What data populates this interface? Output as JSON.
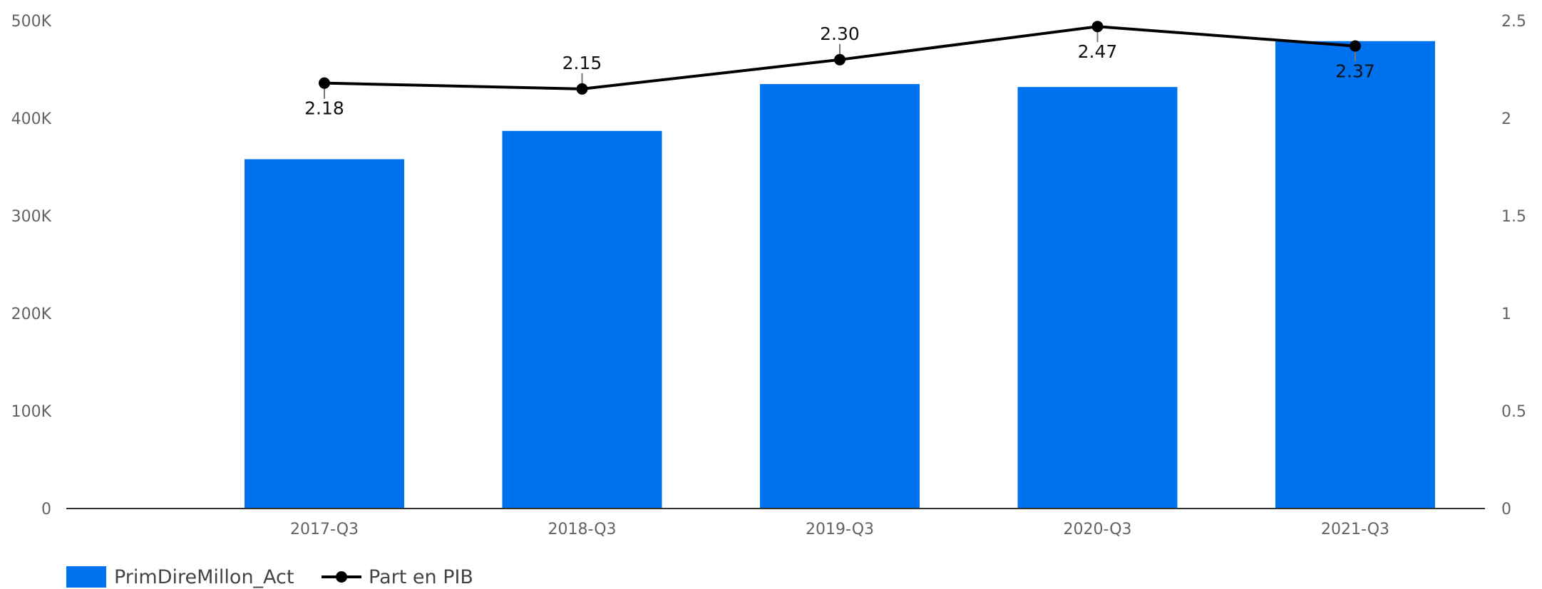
{
  "chart_data": {
    "type": "bar",
    "categories": [
      "2017-Q3",
      "2018-Q3",
      "2019-Q3",
      "2020-Q3",
      "2021-Q3"
    ],
    "series": [
      {
        "name": "PrimDireMillon_Act",
        "type": "bar",
        "axis": "left",
        "values": [
          358000,
          387000,
          435000,
          432000,
          479000
        ],
        "color": "#0072F0"
      },
      {
        "name": "Part en PIB",
        "type": "line",
        "axis": "right",
        "values": [
          2.18,
          2.15,
          2.3,
          2.47,
          2.37
        ],
        "data_labels": [
          "2.18",
          "2.15",
          "2.30",
          "2.47",
          "2.37"
        ],
        "color": "#000000"
      }
    ],
    "y_left": {
      "ylim": [
        0,
        500000
      ],
      "ticks": [
        0,
        100000,
        200000,
        300000,
        400000,
        500000
      ],
      "tick_labels": [
        "0",
        "100K",
        "200K",
        "300K",
        "400K",
        "500K"
      ]
    },
    "y_right": {
      "ylim": [
        0,
        2.5
      ],
      "ticks": [
        0,
        0.5,
        1,
        1.5,
        2,
        2.5
      ],
      "tick_labels": [
        "0",
        "0.5",
        "1",
        "1.5",
        "2",
        "2.5"
      ]
    },
    "grid": false,
    "legend_position": "bottom-left"
  }
}
